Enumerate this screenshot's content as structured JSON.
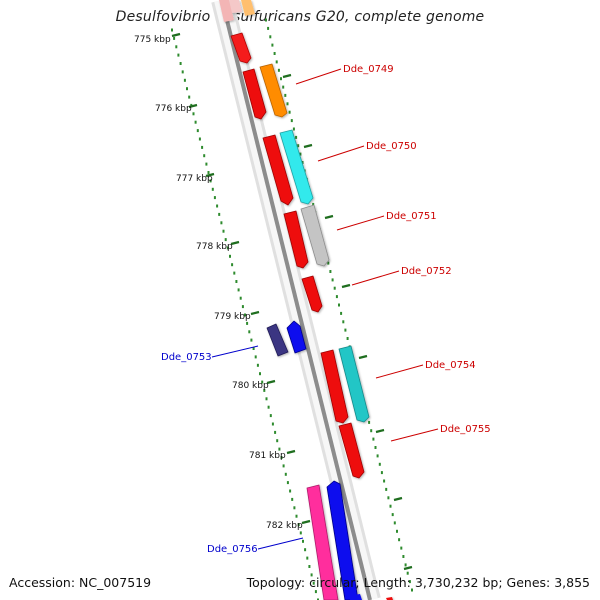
{
  "title": "Desulfovibrio desulfuricans G20, complete genome",
  "footer": {
    "accession": "Accession: NC_007519",
    "summary": "Topology: circular; Length: 3,730,232 bp; Genes: 3,855"
  },
  "colors": {
    "backbone": "#8c8c8c",
    "ruler_dots": "#2e8b2e",
    "label_red": "#cc0000",
    "label_blue": "#0000cc"
  },
  "ruler": {
    "unit": "kbp",
    "ticks": [
      "775 kbp",
      "776 kbp",
      "777 kbp",
      "778 kbp",
      "779 kbp",
      "780 kbp",
      "781 kbp",
      "782 kbp"
    ]
  },
  "gene_labels": [
    {
      "text": "Dde_0749",
      "strand": "forward"
    },
    {
      "text": "Dde_0750",
      "strand": "forward"
    },
    {
      "text": "Dde_0751",
      "strand": "forward"
    },
    {
      "text": "Dde_0752",
      "strand": "forward"
    },
    {
      "text": "Dde_0753",
      "strand": "reverse"
    },
    {
      "text": "Dde_0754",
      "strand": "forward"
    },
    {
      "text": "Dde_0755",
      "strand": "forward"
    },
    {
      "text": "Dde_0756",
      "strand": "reverse"
    }
  ]
}
